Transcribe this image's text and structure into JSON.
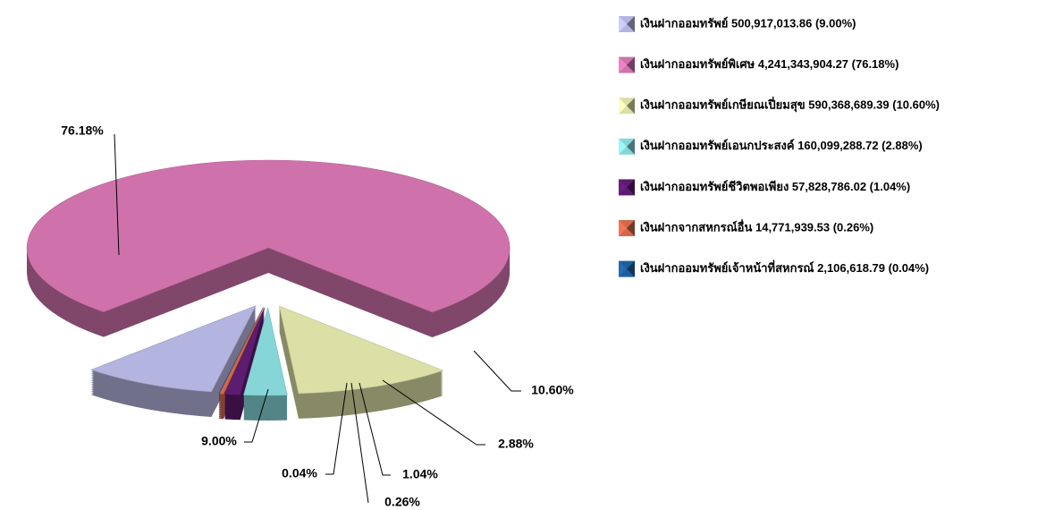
{
  "chart_data": {
    "type": "pie",
    "categories": [
      "เงินฝากออมทรัพย์ 500,917,013.86 (9.00%)",
      "เงินฝากออมทรัพย์พิเศษ 4,241,343,904.27 (76.18%)",
      "เงินฝากออมทรัพย์เกษียณเปี่ยมสุข 590,368,689.39 (10.60%)",
      "เงินฝากออมทรัพย์เอนกประสงค์ 160,099,288.72 (2.88%)",
      "เงินฝากออมทรัพย์ชีวิตพอเพียง 57,828,786.02 (1.04%)",
      "เงินฝากจากสหกรณ์อื่น 14,771,939.53 (0.26%)",
      "เงินฝากออมทรัพย์เจ้าหน้าที่สหกรณ์ 2,106,618.79 (0.04%)"
    ],
    "values": [
      9.0,
      76.18,
      10.6,
      2.88,
      1.04,
      0.26,
      0.04
    ],
    "value_labels": [
      "9.00%",
      "76.18%",
      "10.60%",
      "2.88%",
      "1.04%",
      "0.26%",
      "0.04%"
    ],
    "colors": [
      "#b4b4e0",
      "#cf72ac",
      "#dcdfa6",
      "#86d6d8",
      "#5c1c70",
      "#d4674a",
      "#1e5e9e"
    ],
    "legend": "right"
  }
}
